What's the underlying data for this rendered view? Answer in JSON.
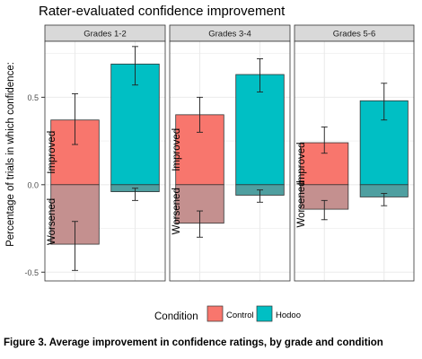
{
  "chart_data": {
    "type": "bar",
    "title": "Rater-evaluated confidence improvement",
    "ylabel": "Percentage of trials in which confidence:",
    "xlabel": "",
    "ylim": [
      -0.55,
      0.82
    ],
    "yticks": [
      -0.5,
      0.0,
      0.5
    ],
    "ytick_labels": [
      "-0.5",
      "0.0",
      "0.5"
    ],
    "grid": true,
    "facets": [
      "Grades 1-2",
      "Grades 3-4",
      "Grades 5-6"
    ],
    "categories": [
      "Control",
      "Hodoo"
    ],
    "region_labels": [
      "Improved",
      "Worsened"
    ],
    "legend": {
      "title": "Condition",
      "position": "bottom"
    },
    "colors": {
      "Control": "#F8766D",
      "Hodoo": "#00BFC4",
      "Control_worsened": "#C4908F",
      "Hodoo_worsened": "#4F9FA0",
      "strip": "#D9D9D9",
      "panel_grid": "#EBEBEB"
    },
    "series": [
      {
        "name": "Improved",
        "values": {
          "Grades 1-2": [
            0.37,
            0.69
          ],
          "Grades 3-4": [
            0.4,
            0.63
          ],
          "Grades 5-6": [
            0.24,
            0.48
          ]
        },
        "error": {
          "Grades 1-2": [
            [
              0.23,
              0.52
            ],
            [
              0.57,
              0.79
            ]
          ],
          "Grades 3-4": [
            [
              0.3,
              0.5
            ],
            [
              0.53,
              0.72
            ]
          ],
          "Grades 5-6": [
            [
              0.18,
              0.33
            ],
            [
              0.37,
              0.58
            ]
          ]
        }
      },
      {
        "name": "Worsened",
        "values": {
          "Grades 1-2": [
            -0.34,
            -0.04
          ],
          "Grades 3-4": [
            -0.22,
            -0.06
          ],
          "Grades 5-6": [
            -0.14,
            -0.07
          ]
        },
        "error": {
          "Grades 1-2": [
            [
              -0.49,
              -0.21
            ],
            [
              -0.09,
              -0.02
            ]
          ],
          "Grades 3-4": [
            [
              -0.3,
              -0.15
            ],
            [
              -0.1,
              -0.03
            ]
          ],
          "Grades 5-6": [
            [
              -0.2,
              -0.09
            ],
            [
              -0.12,
              -0.05
            ]
          ]
        }
      }
    ]
  },
  "caption": "Figure 3. Average improvement in confidence ratings, by grade and condition"
}
